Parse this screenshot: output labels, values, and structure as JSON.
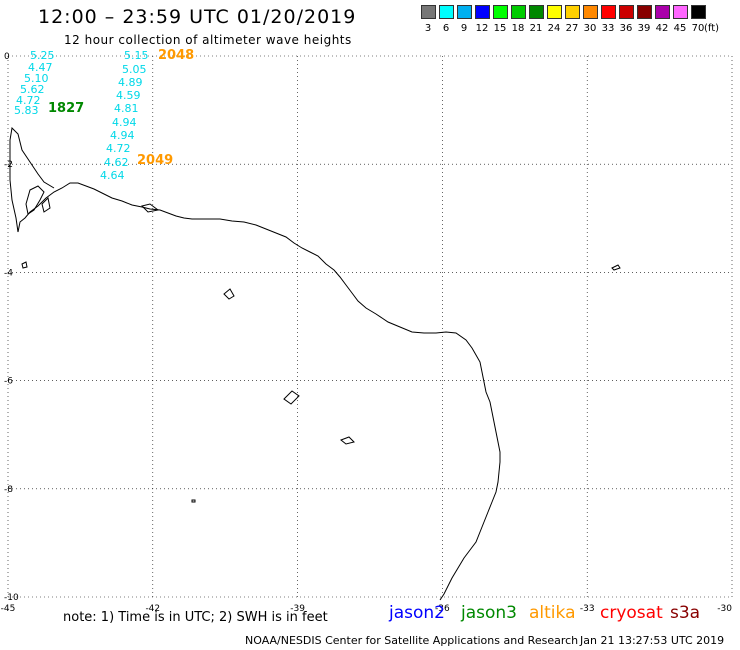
{
  "header": {
    "title": "12:00 – 23:59 UTC 01/20/2019",
    "subtitle": "12 hour collection of altimeter wave heights"
  },
  "legend": {
    "levels": [
      {
        "label": "3",
        "color": "#777777"
      },
      {
        "label": "6",
        "color": "#00ffff"
      },
      {
        "label": "9",
        "color": "#00b0f0"
      },
      {
        "label": "12",
        "color": "#0000ff"
      },
      {
        "label": "15",
        "color": "#00ff00"
      },
      {
        "label": "18",
        "color": "#00cc00"
      },
      {
        "label": "21",
        "color": "#008800"
      },
      {
        "label": "24",
        "color": "#ffff00"
      },
      {
        "label": "27",
        "color": "#ffd000"
      },
      {
        "label": "30",
        "color": "#ff8800"
      },
      {
        "label": "33",
        "color": "#ff0000"
      },
      {
        "label": "36",
        "color": "#cc0000"
      },
      {
        "label": "39",
        "color": "#880000"
      },
      {
        "label": "42",
        "color": "#aa00aa"
      },
      {
        "label": "45",
        "color": "#ff66ff"
      },
      {
        "label": "70",
        "color": "#000000"
      }
    ],
    "unit": "(ft)"
  },
  "map": {
    "lon_ticks": [
      "-45",
      "-42",
      "-39",
      "-36",
      "-33",
      "-30"
    ],
    "lat_ticks": [
      "0",
      "-2",
      "-4",
      "-6",
      "-8",
      "-10"
    ],
    "lon_range": [
      -45,
      -30
    ],
    "lat_range": [
      -10,
      0
    ],
    "grid": "dotted"
  },
  "observations": {
    "track_a": [
      "5.25",
      "4.47",
      "5.10",
      "5.62",
      "4.72",
      "5.83"
    ],
    "track_b": [
      "5.15",
      "5.05",
      "4.89",
      "4.59",
      "4.81",
      "4.94",
      "4.94",
      "4.72",
      "4.62",
      "4.64"
    ]
  },
  "time_labels": [
    {
      "text": "2048",
      "color": "#ff9900"
    },
    {
      "text": "1827",
      "color": "#008800"
    },
    {
      "text": "2049",
      "color": "#ff9900"
    }
  ],
  "footer": {
    "note": "note: 1) Time is in UTC; 2) SWH is in feet",
    "satellites": [
      {
        "name": "jason2",
        "color": "#0000ff"
      },
      {
        "name": "jason3",
        "color": "#008800"
      },
      {
        "name": "altika",
        "color": "#ff9900"
      },
      {
        "name": "cryosat",
        "color": "#ff0000"
      },
      {
        "name": "s3a",
        "color": "#880000"
      }
    ],
    "credit": "NOAA/NESDIS Center for Satellite Applications and Research",
    "timestamp": "Jan 21 13:27:53 UTC 2019"
  }
}
